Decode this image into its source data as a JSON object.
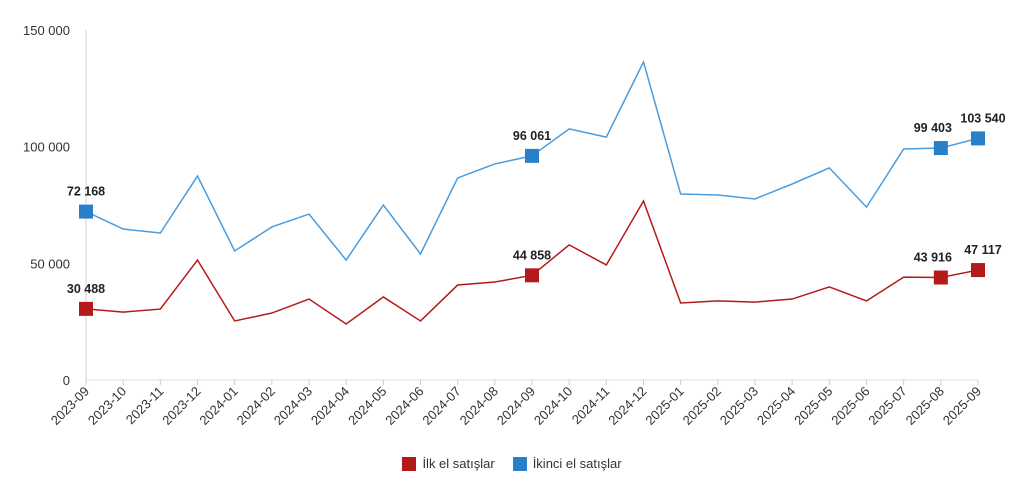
{
  "chart_data": {
    "type": "line",
    "title": "",
    "xlabel": "",
    "ylabel": "",
    "ylim": [
      0,
      150000
    ],
    "yticks": [
      0,
      50000,
      100000,
      150000
    ],
    "ytick_labels": [
      "0",
      "50 000",
      "100 000",
      "150 000"
    ],
    "grid": false,
    "legend_position": "bottom",
    "categories": [
      "2023-09",
      "2023-10",
      "2023-11",
      "2023-12",
      "2024-01",
      "2024-02",
      "2024-03",
      "2024-04",
      "2024-05",
      "2024-06",
      "2024-07",
      "2024-08",
      "2024-09",
      "2024-10",
      "2024-11",
      "2024-12",
      "2025-01",
      "2025-02",
      "2025-03",
      "2025-04",
      "2025-05",
      "2025-06",
      "2025-07",
      "2025-08",
      "2025-09"
    ],
    "series": [
      {
        "name": "İlk el satışlar",
        "color": "#B31B1B",
        "values": [
          30488,
          29100,
          30400,
          51400,
          25300,
          28700,
          34700,
          24000,
          35600,
          25300,
          40700,
          42000,
          44858,
          57900,
          49300,
          76700,
          33000,
          33900,
          33400,
          34700,
          39900,
          33900,
          44100,
          43916,
          47117
        ],
        "labeled_points": [
          {
            "index": 0,
            "label": "30 488"
          },
          {
            "index": 12,
            "label": "44 858"
          },
          {
            "index": 23,
            "label": "43 916"
          },
          {
            "index": 24,
            "label": "47 117"
          }
        ]
      },
      {
        "name": "İkinci el satışlar",
        "color": "#2A7FC9",
        "line_color": "#4A9CDD",
        "values": [
          72168,
          64700,
          63000,
          87400,
          55300,
          65600,
          71100,
          51400,
          75000,
          54000,
          86600,
          92600,
          96061,
          107600,
          104100,
          136300,
          79700,
          79300,
          77600,
          84000,
          90900,
          74100,
          99000,
          99403,
          103540
        ],
        "labeled_points": [
          {
            "index": 0,
            "label": "72 168"
          },
          {
            "index": 12,
            "label": "96 061"
          },
          {
            "index": 23,
            "label": "99 403"
          },
          {
            "index": 24,
            "label": "103 540"
          }
        ]
      }
    ]
  }
}
